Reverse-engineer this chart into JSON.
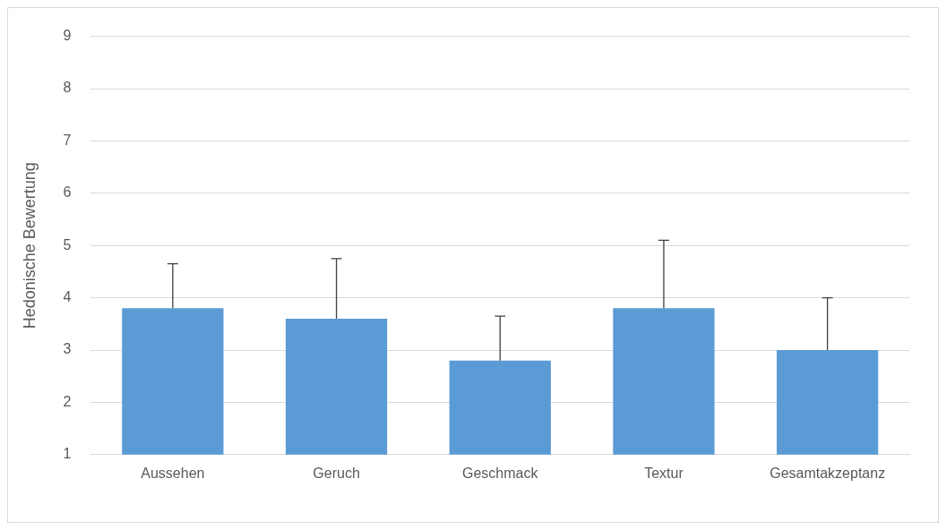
{
  "chart_data": {
    "type": "bar",
    "ylabel": "Hedonische Bewertung",
    "categories": [
      "Aussehen",
      "Geruch",
      "Geschmack",
      "Textur",
      "Gesamtakzeptanz"
    ],
    "values": [
      3.8,
      3.6,
      2.8,
      3.8,
      3.0
    ],
    "errors": [
      [
        3.8,
        4.65
      ],
      [
        3.6,
        4.75
      ],
      [
        2.8,
        3.65
      ],
      [
        3.8,
        5.1
      ],
      [
        3.0,
        4.0
      ]
    ],
    "color": "#5b9bd5",
    "ylim": [
      1,
      9
    ],
    "yticks": [
      1,
      2,
      3,
      4,
      5,
      6,
      7,
      8,
      9
    ],
    "grid": "y",
    "legend": false
  }
}
